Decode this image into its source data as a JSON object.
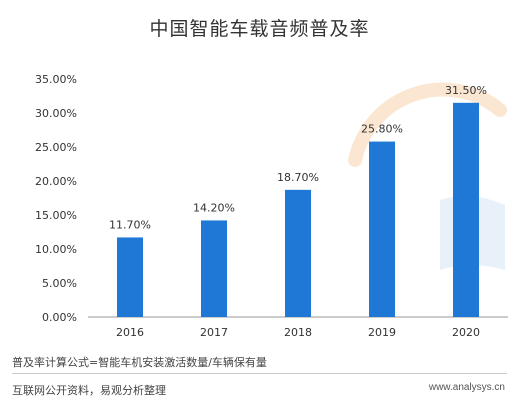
{
  "footer": {
    "formula": "普及率计算公式=智能车机安装激活数量/车辆保有量",
    "source": "互联网公开资料，易观分析整理",
    "url": "www.analysys.cn"
  },
  "colors": {
    "bar": "#1f77d6",
    "axis": "#999999",
    "text": "#333333",
    "watermark": "#eaf1f9"
  },
  "chart_data": {
    "type": "bar",
    "title": "中国智能车载音频普及率",
    "xlabel": "",
    "ylabel": "",
    "categories": [
      "2016",
      "2017",
      "2018",
      "2019",
      "2020"
    ],
    "values": [
      11.7,
      14.2,
      18.7,
      25.8,
      31.5
    ],
    "value_labels": [
      "11.70%",
      "14.20%",
      "18.70%",
      "25.80%",
      "31.50%"
    ],
    "y_ticks": [
      "0.00%",
      "5.00%",
      "10.00%",
      "15.00%",
      "20.00%",
      "25.00%",
      "30.00%",
      "35.00%"
    ],
    "y_tick_values": [
      0,
      5,
      10,
      15,
      20,
      25,
      30,
      35
    ],
    "ylim": [
      0,
      35
    ],
    "grid": false,
    "legend": "none"
  }
}
